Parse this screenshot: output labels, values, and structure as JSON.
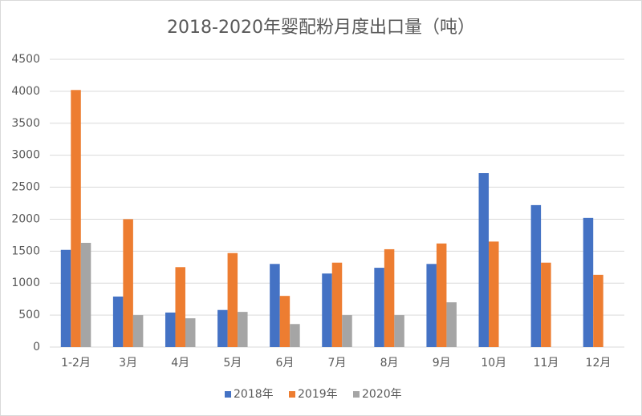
{
  "chart_data": {
    "type": "bar",
    "title": "2018-2020年婴配粉月度出口量（吨）",
    "categories": [
      "1-2月",
      "3月",
      "4月",
      "5月",
      "6月",
      "7月",
      "8月",
      "9月",
      "10月",
      "11月",
      "12月"
    ],
    "series": [
      {
        "name": "2018年",
        "color": "#4472c4",
        "values": [
          1520,
          790,
          540,
          580,
          1300,
          1150,
          1240,
          1300,
          2720,
          2220,
          2020
        ]
      },
      {
        "name": "2019年",
        "color": "#ed7d31",
        "values": [
          4020,
          2000,
          1250,
          1470,
          800,
          1320,
          1530,
          1620,
          1650,
          1320,
          1130
        ]
      },
      {
        "name": "2020年",
        "color": "#a5a5a5",
        "values": [
          1630,
          500,
          450,
          550,
          360,
          500,
          500,
          700,
          null,
          null,
          null
        ]
      }
    ],
    "ylim": [
      0,
      4500
    ],
    "yticks": [
      0,
      500,
      1000,
      1500,
      2000,
      2500,
      3000,
      3500,
      4000,
      4500
    ],
    "grid": true,
    "legend": "bottom"
  }
}
